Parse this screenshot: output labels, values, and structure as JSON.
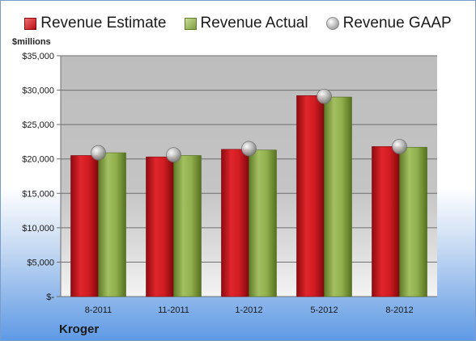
{
  "legend": {
    "estimate": "Revenue Estimate",
    "actual": "Revenue Actual",
    "gaap": "Revenue GAAP"
  },
  "y_unit_label": "$millions",
  "company": "Kroger",
  "colors": {
    "estimate": "#c8161c",
    "actual": "#8aaa48",
    "gaap": "#b3b3b3"
  },
  "chart_data": {
    "type": "bar",
    "categories": [
      "8-2011",
      "11-2011",
      "1-2012",
      "5-2012",
      "8-2012"
    ],
    "series": [
      {
        "name": "Revenue Estimate",
        "values": [
          20500,
          20300,
          21400,
          29200,
          21800
        ]
      },
      {
        "name": "Revenue Actual",
        "values": [
          20900,
          20500,
          21300,
          29000,
          21700
        ]
      },
      {
        "name": "Revenue GAAP",
        "type": "scatter",
        "values": [
          20900,
          20600,
          21500,
          29100,
          21800
        ]
      }
    ],
    "ylim": [
      0,
      35000
    ],
    "yticks": [
      0,
      5000,
      10000,
      15000,
      20000,
      25000,
      30000,
      35000
    ],
    "ytick_labels": [
      "$-",
      "$5,000",
      "$10,000",
      "$15,000",
      "$20,000",
      "$25,000",
      "$30,000",
      "$35,000"
    ],
    "ylabel": "$millions",
    "title": "",
    "xlabel": "",
    "grid": true,
    "legend_position": "top"
  }
}
